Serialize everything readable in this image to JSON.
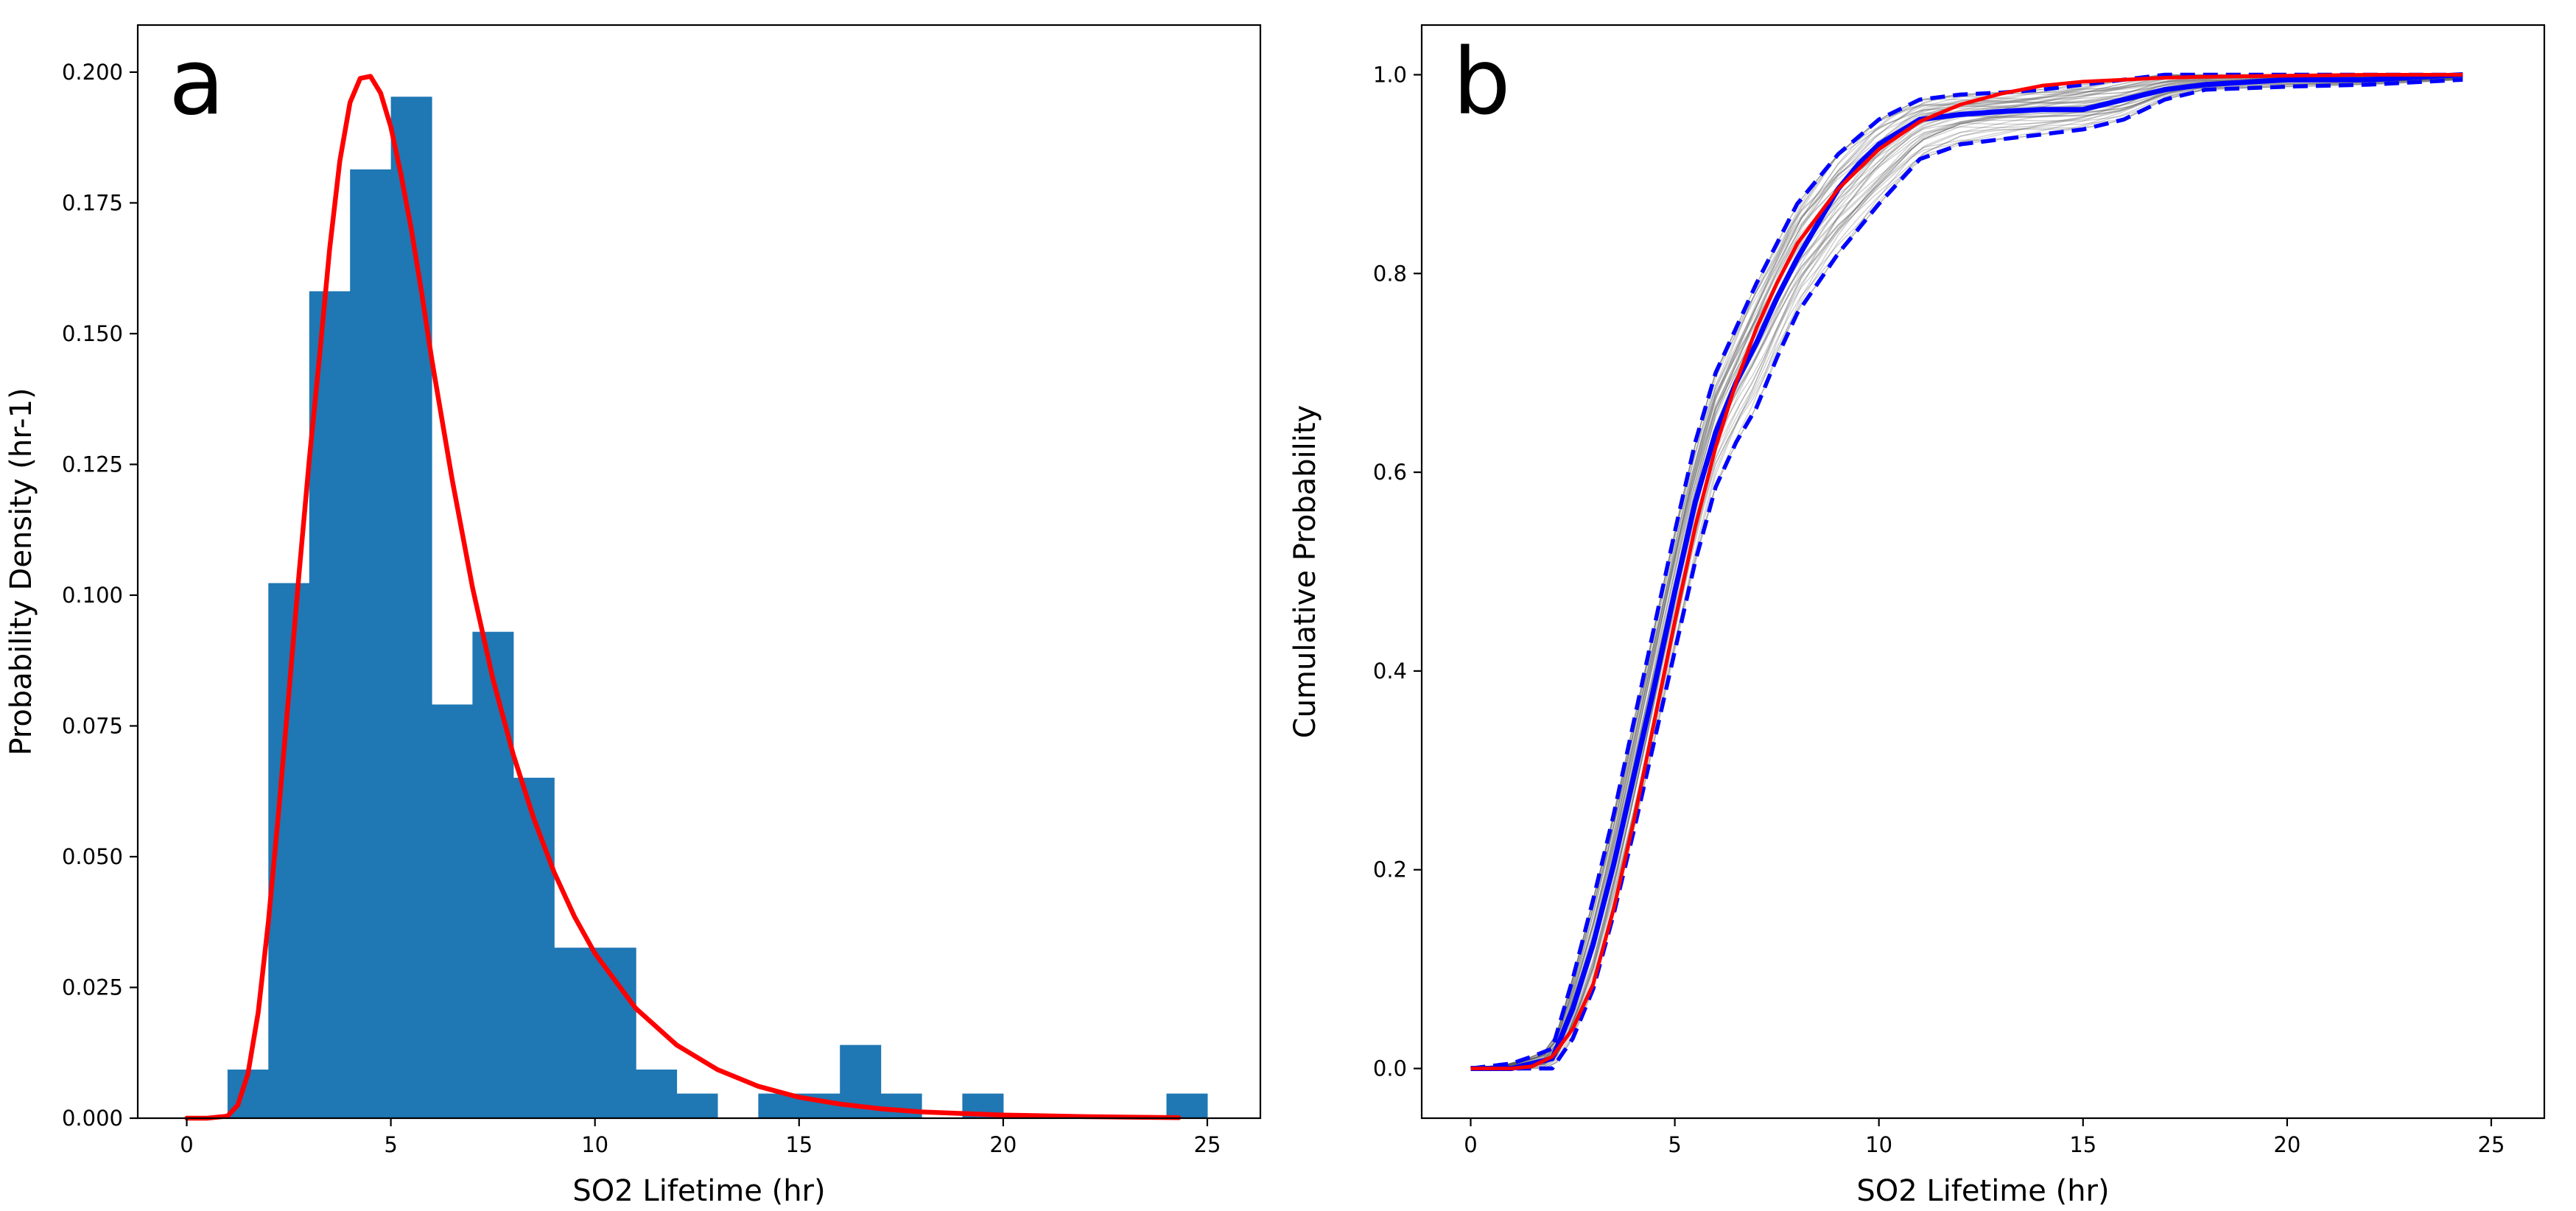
{
  "colors": {
    "bar": "#1f77b4",
    "fit": "#ff0000",
    "mean": "#0000ff",
    "band": "#0000ff",
    "ensemble": "#555555",
    "axes": "#000000",
    "background": "#ffffff"
  },
  "chart_data": [
    {
      "type": "bar",
      "panel_label": "a",
      "title": "",
      "xlabel": "SO2 Lifetime (hr)",
      "ylabel": "Probability Density (hr-1)",
      "xlim": [
        -1.2,
        26.3
      ],
      "ylim": [
        0.0,
        0.209
      ],
      "xticks": [
        0,
        5,
        10,
        15,
        20,
        25
      ],
      "yticks": [
        0.0,
        0.025,
        0.05,
        0.075,
        0.1,
        0.125,
        0.15,
        0.175,
        0.2
      ],
      "ytick_labels": [
        "0.000",
        "0.025",
        "0.050",
        "0.075",
        "0.100",
        "0.125",
        "0.150",
        "0.175",
        "0.200"
      ],
      "grid": false,
      "legend": "none",
      "bins": {
        "edges": [
          1,
          2,
          3,
          4,
          5,
          6,
          7,
          8,
          9,
          10,
          11,
          12,
          13,
          14,
          15,
          16,
          17,
          18,
          19,
          20,
          21,
          22,
          23,
          24,
          25
        ],
        "values": [
          0.0093,
          0.1023,
          0.1581,
          0.1814,
          0.1953,
          0.0791,
          0.093,
          0.0651,
          0.0326,
          0.0326,
          0.0093,
          0.0047,
          0,
          0.0047,
          0.0047,
          0.014,
          0.0047,
          0,
          0.0047,
          0,
          0,
          0,
          0,
          0.0047
        ]
      },
      "fit_curve": {
        "name": "lognormal fit",
        "x": [
          0,
          0.5,
          1,
          1.25,
          1.5,
          1.75,
          2,
          2.25,
          2.5,
          2.75,
          3,
          3.25,
          3.5,
          3.75,
          4,
          4.25,
          4.5,
          4.75,
          5,
          5.25,
          5.5,
          5.75,
          6,
          6.5,
          7,
          7.5,
          8,
          8.5,
          9,
          9.5,
          10,
          11,
          12,
          13,
          14,
          15,
          16,
          17,
          18,
          20,
          22,
          24.3
        ],
        "y": [
          0,
          0,
          0.0004,
          0.0025,
          0.0085,
          0.0202,
          0.0375,
          0.0585,
          0.081,
          0.104,
          0.1258,
          0.1454,
          0.1662,
          0.183,
          0.1942,
          0.1988,
          0.1992,
          0.196,
          0.1895,
          0.1804,
          0.17,
          0.158,
          0.1452,
          0.1222,
          0.1015,
          0.084,
          0.0695,
          0.0573,
          0.047,
          0.0385,
          0.0315,
          0.021,
          0.014,
          0.0093,
          0.0061,
          0.004,
          0.0027,
          0.0018,
          0.0012,
          0.0006,
          0.0003,
          0.0001
        ]
      }
    },
    {
      "type": "line",
      "panel_label": "b",
      "title": "",
      "xlabel": "SO2 Lifetime (hr)",
      "ylabel": "Cumulative Probability",
      "xlim": [
        -1.2,
        26.3
      ],
      "ylim": [
        -0.05,
        1.05
      ],
      "xticks": [
        0,
        5,
        10,
        15,
        20,
        25
      ],
      "yticks": [
        0.0,
        0.2,
        0.4,
        0.6,
        0.8,
        1.0
      ],
      "ytick_labels": [
        "0.0",
        "0.2",
        "0.4",
        "0.6",
        "0.8",
        "1.0"
      ],
      "grid": false,
      "legend": "none",
      "series": [
        {
          "name": "fitted CDF",
          "style": "solid-red",
          "x": [
            0,
            1,
            1.5,
            2,
            2.5,
            3,
            3.5,
            4,
            4.5,
            5,
            5.5,
            6,
            6.5,
            7,
            7.5,
            8,
            9,
            10,
            11,
            12,
            13,
            14,
            15,
            16,
            17,
            18,
            20,
            22,
            24.3
          ],
          "y": [
            0,
            0,
            0.002,
            0.012,
            0.04,
            0.085,
            0.16,
            0.25,
            0.35,
            0.45,
            0.545,
            0.625,
            0.69,
            0.745,
            0.79,
            0.83,
            0.885,
            0.925,
            0.953,
            0.97,
            0.981,
            0.989,
            0.993,
            0.995,
            0.997,
            0.998,
            0.999,
            1.0,
            1.0
          ]
        },
        {
          "name": "mean empirical CDF",
          "style": "solid-blue",
          "x": [
            0,
            1,
            1.5,
            2,
            2.5,
            3,
            3.5,
            4,
            4.5,
            5,
            5.5,
            6,
            6.5,
            7,
            7.5,
            8,
            8.5,
            9,
            9.5,
            10,
            11,
            12,
            13,
            14,
            15,
            16,
            17,
            18,
            20,
            22,
            24.3
          ],
          "y": [
            0,
            0,
            0.005,
            0.01,
            0.06,
            0.125,
            0.205,
            0.295,
            0.385,
            0.48,
            0.57,
            0.64,
            0.69,
            0.73,
            0.775,
            0.815,
            0.85,
            0.885,
            0.91,
            0.93,
            0.955,
            0.96,
            0.963,
            0.965,
            0.965,
            0.975,
            0.985,
            0.99,
            0.995,
            0.995,
            1.0
          ]
        },
        {
          "name": "upper confidence band",
          "style": "dashed-blue",
          "x": [
            0,
            1,
            1.5,
            2,
            2.5,
            3,
            3.5,
            4,
            4.5,
            5,
            5.5,
            6,
            6.5,
            7,
            7.5,
            8,
            9,
            10,
            11,
            12,
            13,
            14,
            15,
            16,
            17,
            18,
            20,
            22,
            24.3
          ],
          "y": [
            0,
            0.005,
            0.012,
            0.02,
            0.09,
            0.17,
            0.255,
            0.35,
            0.445,
            0.54,
            0.63,
            0.7,
            0.745,
            0.79,
            0.83,
            0.87,
            0.92,
            0.955,
            0.975,
            0.98,
            0.982,
            0.985,
            0.99,
            0.995,
            1.0,
            1.0,
            1.0,
            1.0,
            1.0
          ]
        },
        {
          "name": "lower confidence band",
          "style": "dashed-blue",
          "x": [
            0,
            1,
            1.5,
            2,
            2.5,
            3,
            3.5,
            4,
            4.5,
            5,
            5.5,
            6,
            6.5,
            7,
            7.5,
            8,
            9,
            10,
            11,
            12,
            13,
            14,
            15,
            16,
            17,
            18,
            20,
            22,
            24.3
          ],
          "y": [
            0,
            0,
            0,
            0,
            0.03,
            0.08,
            0.155,
            0.24,
            0.33,
            0.42,
            0.51,
            0.585,
            0.63,
            0.665,
            0.715,
            0.76,
            0.82,
            0.87,
            0.915,
            0.93,
            0.935,
            0.94,
            0.945,
            0.955,
            0.975,
            0.985,
            0.988,
            0.99,
            0.995
          ]
        }
      ]
    }
  ]
}
